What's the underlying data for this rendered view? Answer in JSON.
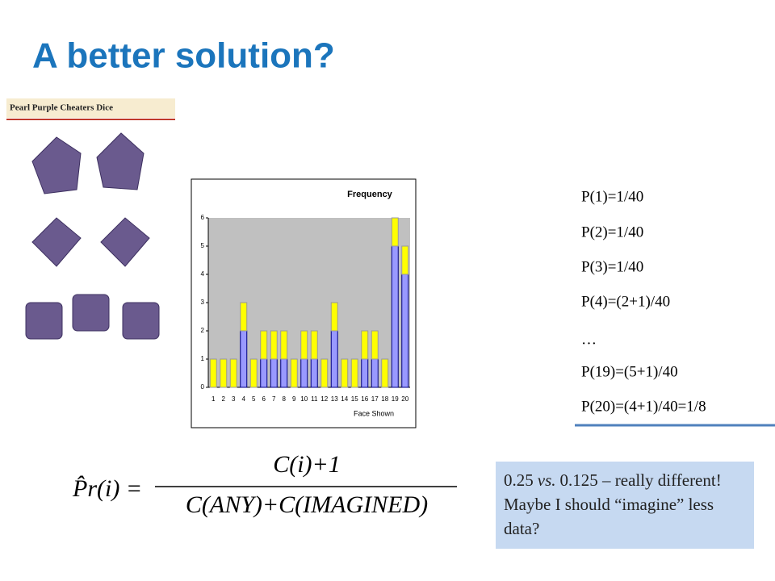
{
  "slide": {
    "title": "A better solution?",
    "image_caption": "Pearl Purple Cheaters Dice",
    "probabilities": [
      "P(1)=1/40",
      "P(2)=1/40",
      "P(3)=1/40",
      "P(4)=(2+1)/40",
      "…",
      "P(19)=(5+1)/40",
      "P(20)=(4+1)/40=1/8"
    ],
    "formula": {
      "lhs": "P̂r(i) =",
      "numerator": "C(i)+1",
      "denominator": "C(ANY)+C(IMAGINED)"
    },
    "callout": [
      "0.25",
      "vs.",
      "0.125 – really different! Maybe I should “imagine” less data?"
    ]
  },
  "chart_data": {
    "type": "stacked-bar",
    "title": "Frequency",
    "x_label": "Face Shown",
    "categories": [
      "1",
      "2",
      "3",
      "4",
      "5",
      "6",
      "7",
      "8",
      "9",
      "10",
      "11",
      "12",
      "13",
      "14",
      "15",
      "16",
      "17",
      "18",
      "19",
      "20"
    ],
    "series": [
      {
        "color": "#9999ff",
        "values": [
          0,
          0,
          0,
          2,
          0,
          1,
          1,
          1,
          0,
          1,
          1,
          0,
          2,
          0,
          0,
          1,
          1,
          0,
          5,
          4
        ]
      },
      {
        "color": "#ffff00",
        "values": [
          1,
          1,
          1,
          1,
          1,
          1,
          1,
          1,
          1,
          1,
          1,
          1,
          1,
          1,
          1,
          1,
          1,
          1,
          1,
          1
        ]
      }
    ],
    "ylim": [
      0,
      6
    ],
    "yticks": [
      0,
      1,
      2,
      3,
      4,
      5,
      6
    ],
    "grid": false
  }
}
